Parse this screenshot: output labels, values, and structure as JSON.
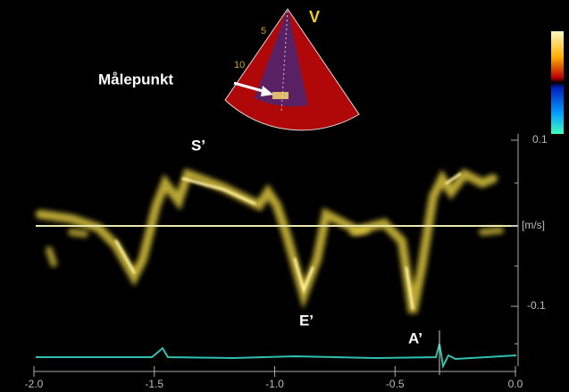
{
  "annotations": {
    "measure_point": "Målepunkt",
    "s_wave": "S’",
    "e_wave": "E’",
    "a_wave": "A’",
    "sector_mark": "V"
  },
  "right_axis": {
    "top": "0.1",
    "unit": "[m/s]",
    "bottom": "-0.1"
  },
  "x_axis": {
    "ticks": [
      "-2.0",
      "-1.5",
      "-1.0",
      "-0.5",
      "0.0"
    ]
  }
}
